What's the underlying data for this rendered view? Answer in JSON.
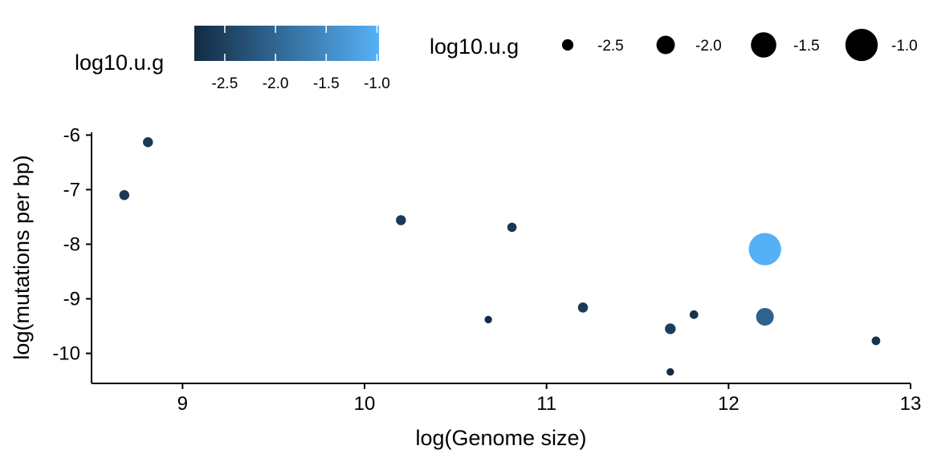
{
  "chart_data": {
    "type": "scatter",
    "title": "",
    "xlabel": "log(Genome size)",
    "ylabel": "log(mutations per bp)",
    "xlim": [
      8.5,
      13.0
    ],
    "ylim": [
      -10.55,
      -5.95
    ],
    "x_ticks": [
      9,
      10,
      11,
      12,
      13
    ],
    "y_ticks": [
      -6,
      -7,
      -8,
      -9,
      -10
    ],
    "grid": false,
    "points": [
      {
        "x": 8.68,
        "y": -7.1,
        "log10_u_g": -2.6
      },
      {
        "x": 8.81,
        "y": -6.13,
        "log10_u_g": -2.6
      },
      {
        "x": 10.2,
        "y": -7.56,
        "log10_u_g": -2.6
      },
      {
        "x": 10.68,
        "y": -9.38,
        "log10_u_g": -2.78
      },
      {
        "x": 10.81,
        "y": -7.69,
        "log10_u_g": -2.65
      },
      {
        "x": 11.2,
        "y": -9.16,
        "log10_u_g": -2.6
      },
      {
        "x": 11.68,
        "y": -9.55,
        "log10_u_g": -2.55
      },
      {
        "x": 11.68,
        "y": -10.34,
        "log10_u_g": -2.78
      },
      {
        "x": 11.81,
        "y": -9.29,
        "log10_u_g": -2.7
      },
      {
        "x": 12.2,
        "y": -8.09,
        "log10_u_g": -1.0
      },
      {
        "x": 12.2,
        "y": -9.33,
        "log10_u_g": -2.05
      },
      {
        "x": 12.81,
        "y": -9.77,
        "log10_u_g": -2.7
      }
    ],
    "color_legend": {
      "title": "log10.u.g",
      "range": [
        -2.8,
        -0.98
      ],
      "ticks": [
        "-2.5",
        "-2.0",
        "-1.5",
        "-1.0"
      ],
      "tick_values": [
        -2.5,
        -2.0,
        -1.5,
        -1.0
      ],
      "low_color": "#132B43",
      "high_color": "#56B1F7"
    },
    "size_legend": {
      "title": "log10.u.g",
      "labels": [
        "-2.5",
        "-2.0",
        "-1.5",
        "-1.0"
      ],
      "values": [
        -2.5,
        -2.0,
        -1.5,
        -1.0
      ]
    },
    "legend_position": "top"
  }
}
